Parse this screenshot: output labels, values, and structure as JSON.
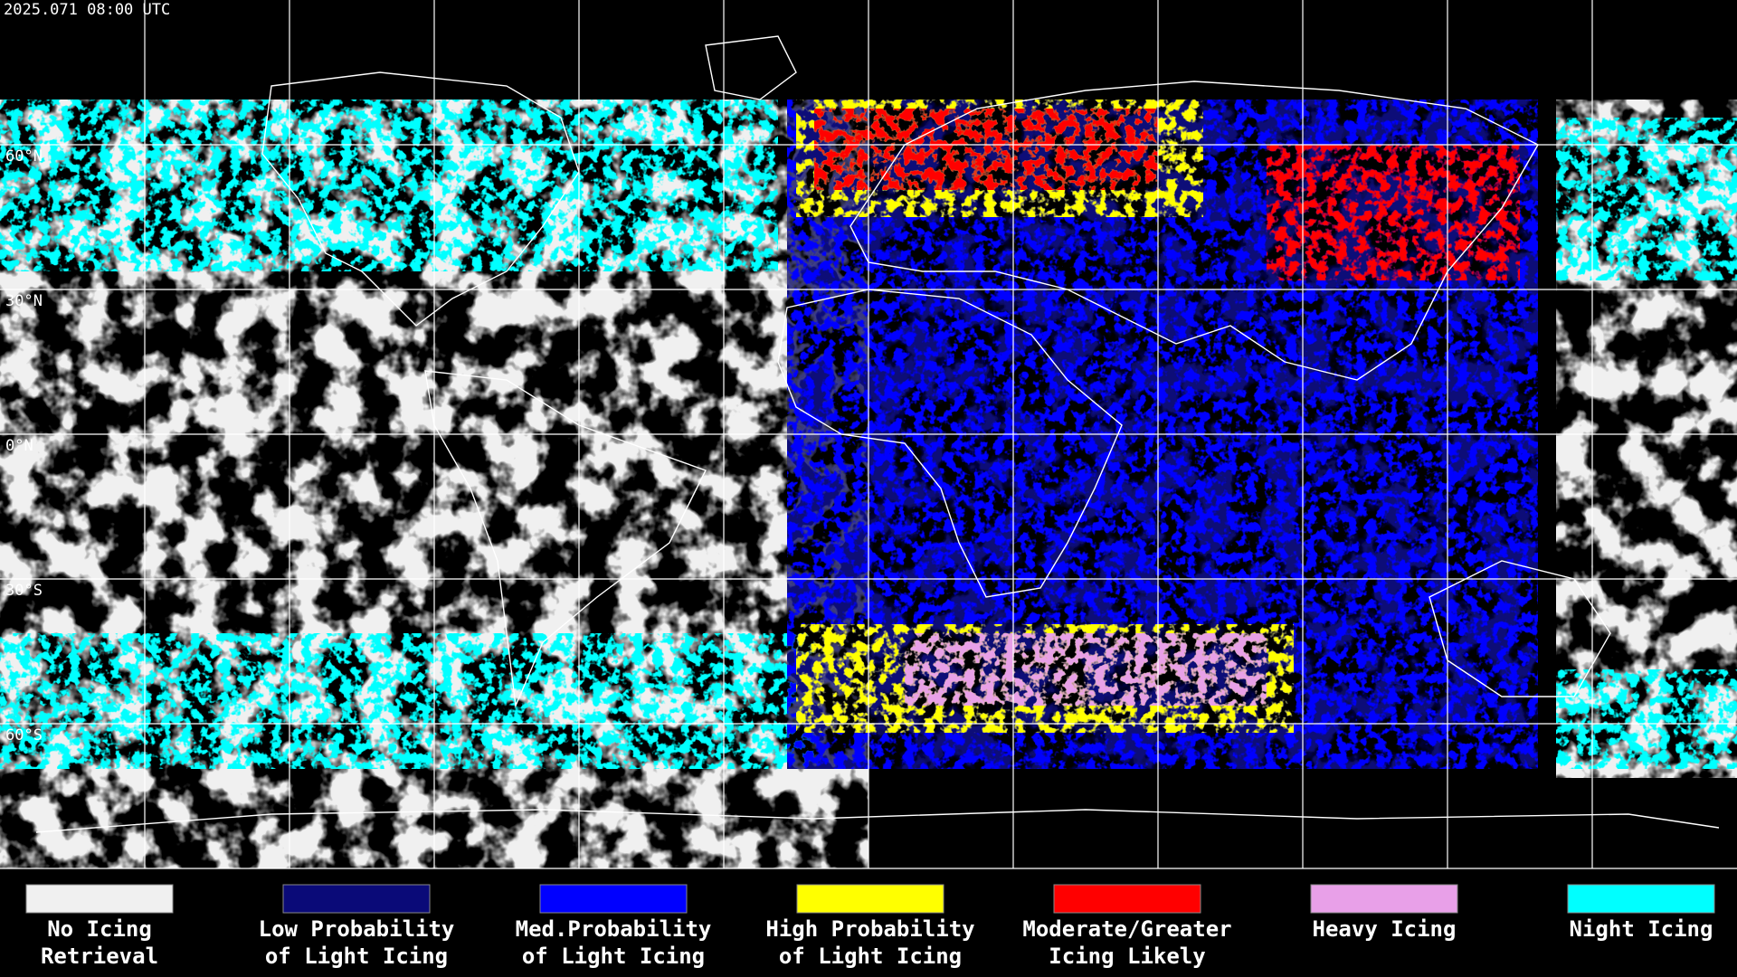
{
  "timestamp": "2025.071 08:00 UTC",
  "latitude_labels": [
    "60°N",
    "30°N",
    "0°N",
    "30°S",
    "60°S"
  ],
  "legend": [
    {
      "color": "#f0f0f0",
      "label": [
        "No Icing",
        "Retrieval"
      ]
    },
    {
      "color": "#0a0a78",
      "label": [
        "Low Probability",
        "of Light Icing"
      ]
    },
    {
      "color": "#0000ff",
      "label": [
        "Med.Probability",
        "of Light Icing"
      ]
    },
    {
      "color": "#ffff00",
      "label": [
        "High Probability",
        "of Light Icing"
      ]
    },
    {
      "color": "#ff0000",
      "label": [
        "Moderate/Greater",
        "Icing Likely"
      ]
    },
    {
      "color": "#e8a0e8",
      "label": [
        "Heavy Icing"
      ]
    },
    {
      "color": "#00ffff",
      "label": [
        "Night Icing"
      ]
    }
  ]
}
